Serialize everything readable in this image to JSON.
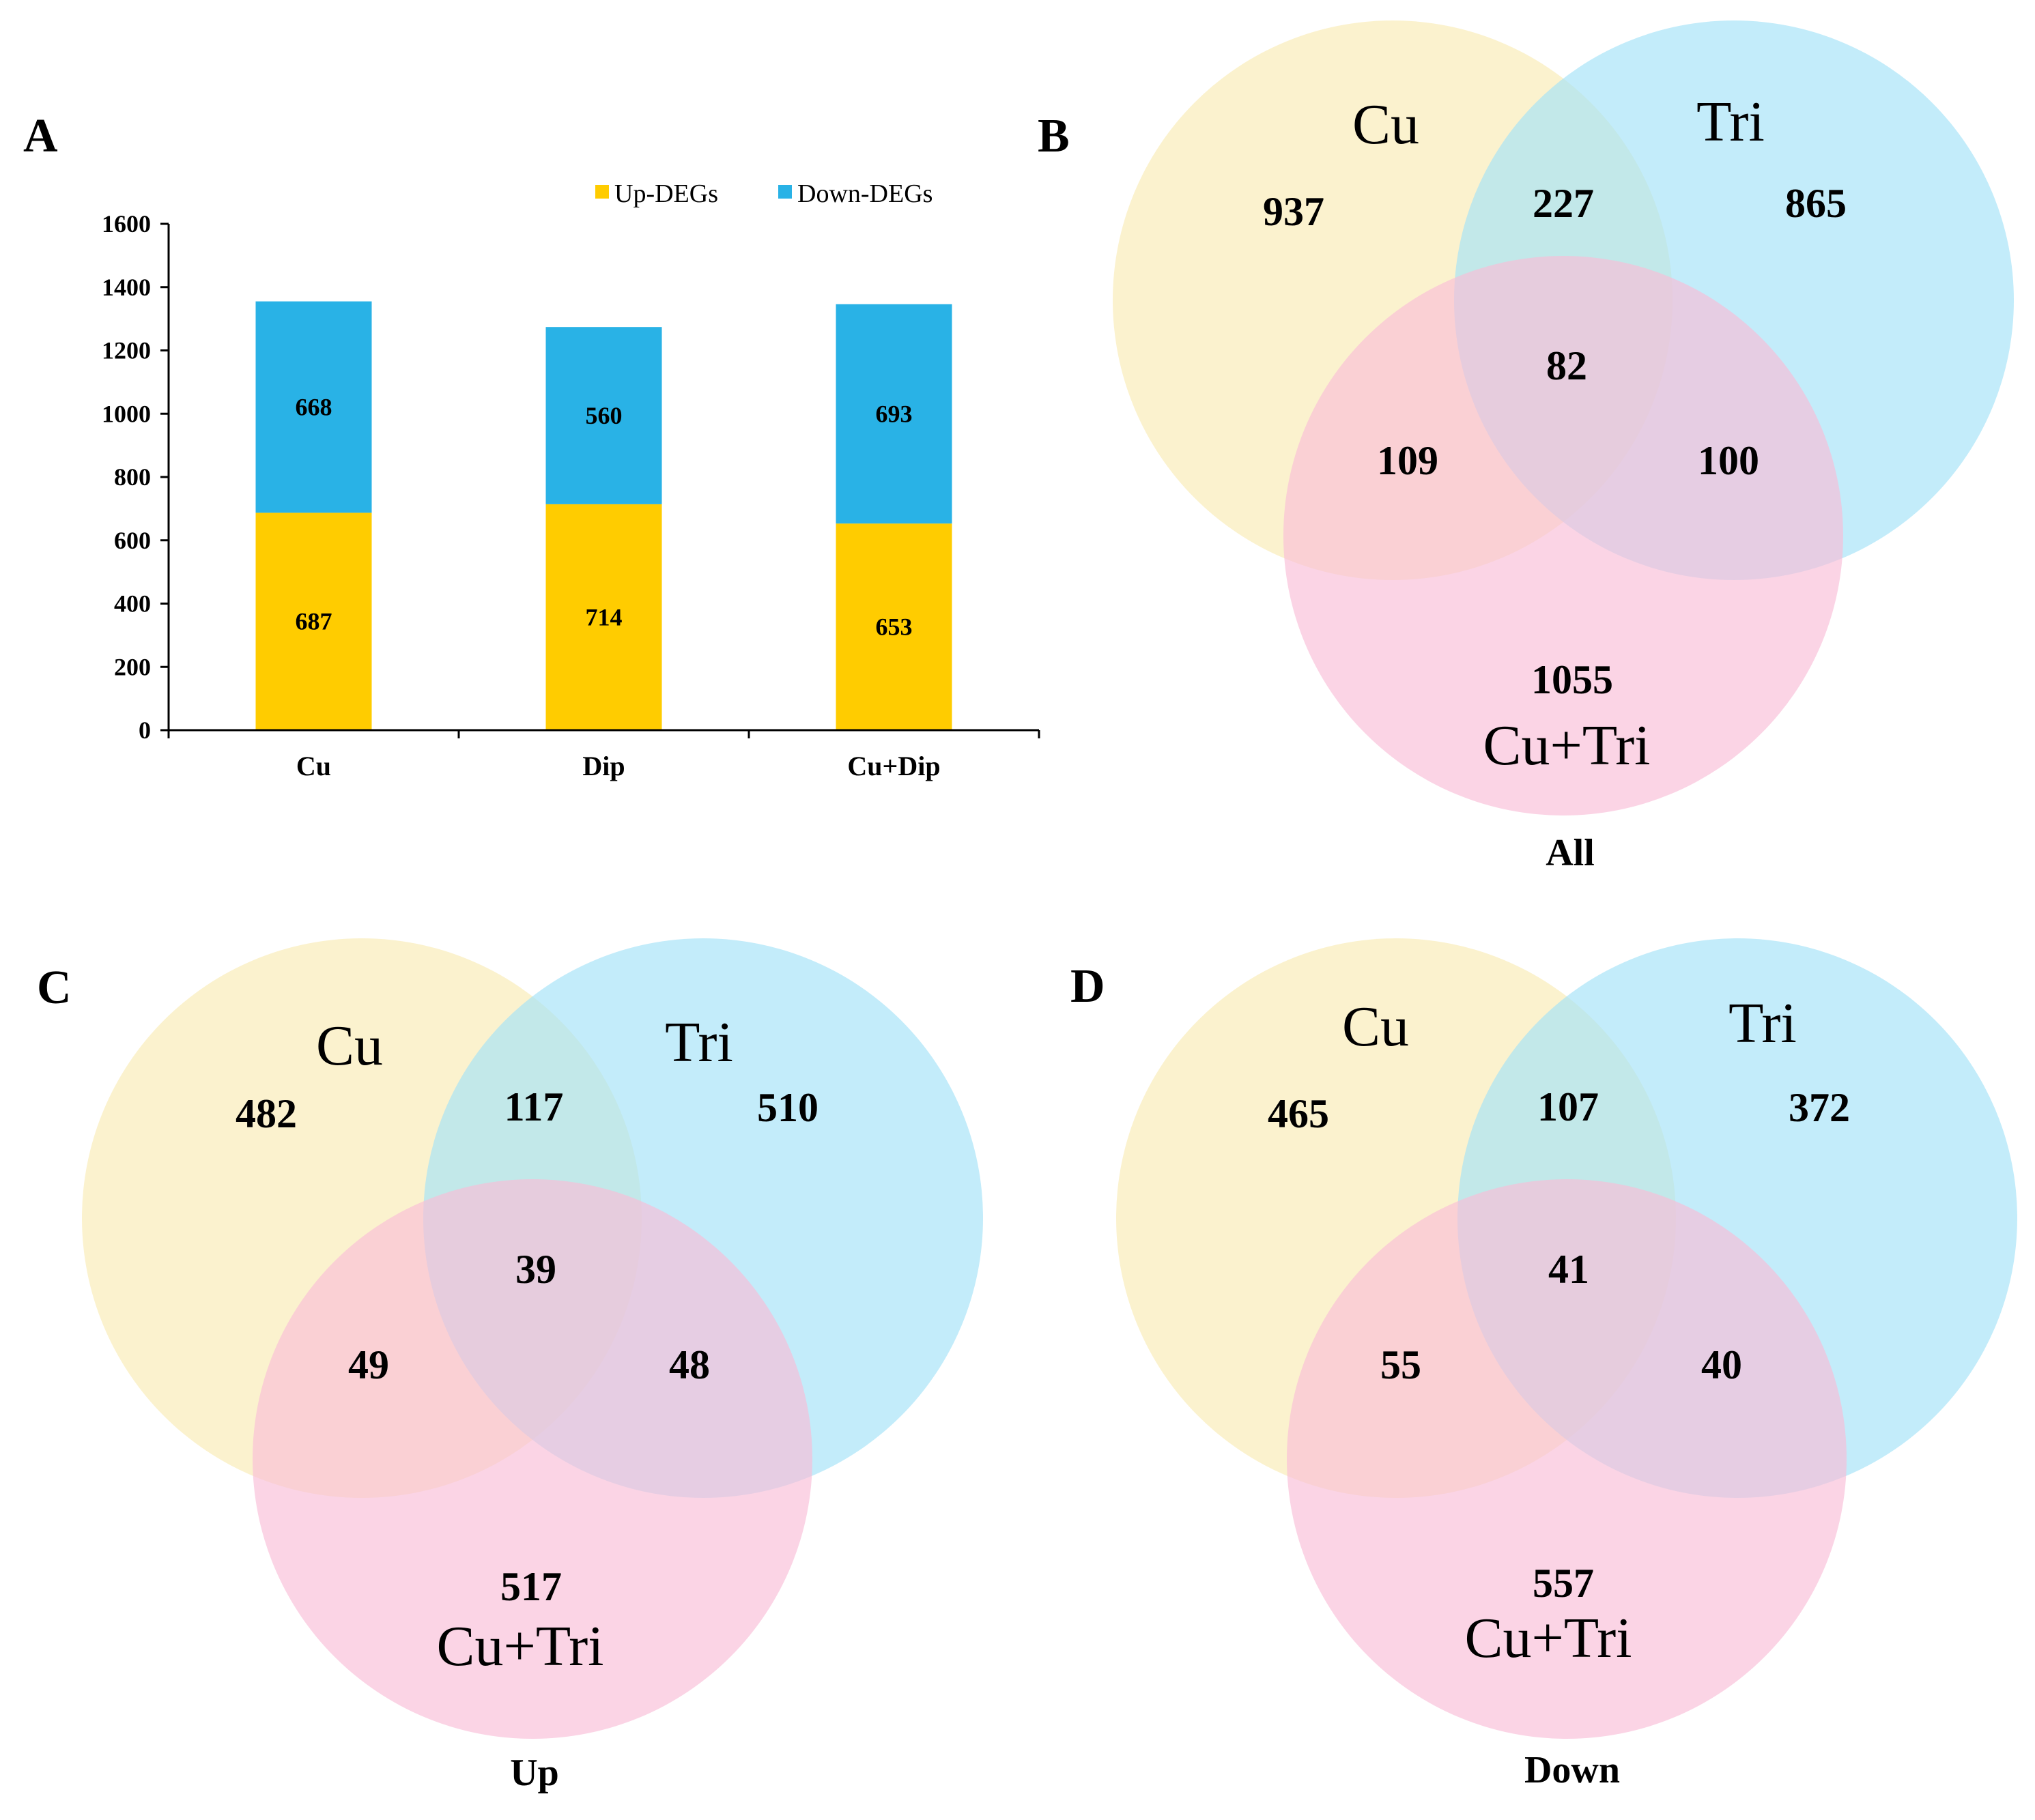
{
  "colors": {
    "up": "#ffcc00",
    "down": "#29b2e6",
    "venn_a": "#f9ebb4",
    "venn_b": "#a3e2f8",
    "venn_c": "#f9bdd7",
    "axis": "#000000"
  },
  "chart_data": [
    {
      "panel": "A",
      "type": "bar",
      "stacked": true,
      "categories": [
        "Cu",
        "Dip",
        "Cu+Dip"
      ],
      "series": [
        {
          "name": "Up-DEGs",
          "values": [
            687,
            714,
            653
          ]
        },
        {
          "name": "Down-DEGs",
          "values": [
            668,
            560,
            693
          ]
        }
      ],
      "yticks": [
        "0",
        "200",
        "400",
        "600",
        "800",
        "1000",
        "1200",
        "1400",
        "1600"
      ],
      "ylim": [
        0,
        1600
      ],
      "legend_position": "top-right",
      "title": "",
      "xlabel": "",
      "ylabel": ""
    },
    {
      "panel": "B",
      "type": "venn",
      "caption": "All",
      "sets": [
        "Cu",
        "Tri",
        "Cu+Tri"
      ],
      "regions": {
        "cu_only": "937",
        "cu_tri": "227",
        "tri_only": "865",
        "all_three": "82",
        "cu_cutri": "109",
        "tri_cutri": "100",
        "cutri_only": "1055"
      }
    },
    {
      "panel": "C",
      "type": "venn",
      "caption": "Up",
      "sets": [
        "Cu",
        "Tri",
        "Cu+Tri"
      ],
      "regions": {
        "cu_only": "482",
        "cu_tri": "117",
        "tri_only": "510",
        "all_three": "39",
        "cu_cutri": "49",
        "tri_cutri": "48",
        "cutri_only": "517"
      }
    },
    {
      "panel": "D",
      "type": "venn",
      "caption": "Down",
      "sets": [
        "Cu",
        "Tri",
        "Cu+Tri"
      ],
      "regions": {
        "cu_only": "465",
        "cu_tri": "107",
        "tri_only": "372",
        "all_three": "41",
        "cu_cutri": "55",
        "tri_cutri": "40",
        "cutri_only": "557"
      }
    }
  ]
}
